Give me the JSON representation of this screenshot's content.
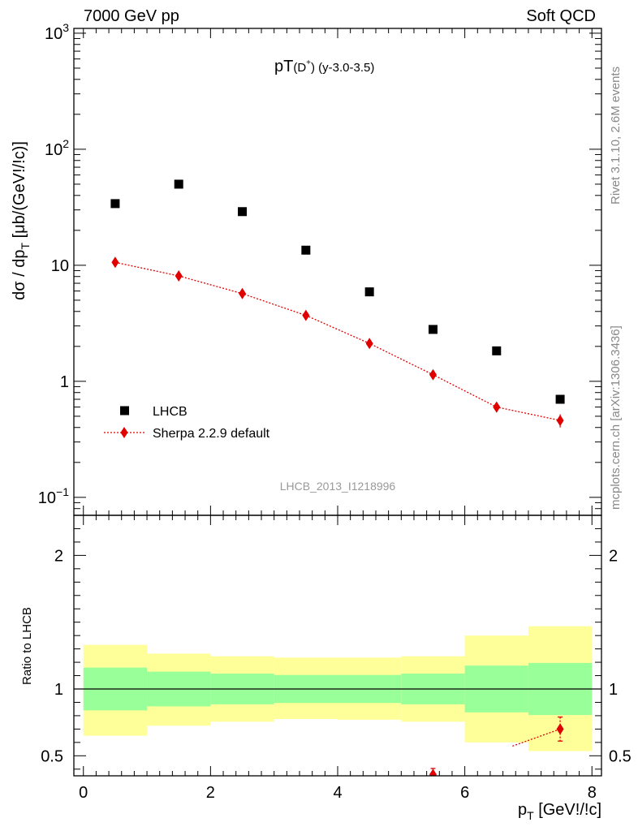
{
  "header": {
    "left": "7000 GeV pp",
    "right": "Soft QCD"
  },
  "side_labels": {
    "rivet": "Rivet 3.1.10,  2.6M events",
    "source": "mcplots.cern.ch [arXiv:1306.3436]"
  },
  "chart_data": [
    {
      "type": "scatter",
      "panel": "main",
      "title_main": "pT",
      "title_particle": "(D",
      "title_charge": "+",
      "title_tail": ") (y-3.0-3.5)",
      "ylabel": "dσ / dp",
      "ylabel_sub": "T",
      "ylabel_units": " [μb/(GeV!/!c)]",
      "yscale": "log",
      "xlim": [
        -0.15,
        8.15
      ],
      "ylim": [
        0.07,
        1100
      ],
      "ytick_labels": [
        {
          "value": 0.1,
          "base": "10",
          "exp": "−1"
        },
        {
          "value": 1,
          "base": "1",
          "exp": ""
        },
        {
          "value": 10,
          "base": "10",
          "exp": ""
        },
        {
          "value": 100,
          "base": "10",
          "exp": "2"
        },
        {
          "value": 1000,
          "base": "10",
          "exp": "3"
        }
      ],
      "analysis_id": "LHCB_2013_I1218996",
      "legend_position": "lower-left",
      "series": [
        {
          "name": "LHCB",
          "marker": "square",
          "color": "#000000",
          "x": [
            0.5,
            1.5,
            2.5,
            3.5,
            4.5,
            5.5,
            6.5,
            7.5
          ],
          "y": [
            34,
            50,
            29,
            13.5,
            5.9,
            2.8,
            1.83,
            0.7
          ]
        },
        {
          "name": "Sherpa 2.2.9 default",
          "marker": "diamond",
          "line": "dotted",
          "color": "#e00000",
          "x": [
            0.5,
            1.5,
            2.5,
            3.5,
            4.5,
            5.5,
            6.5,
            7.5
          ],
          "y": [
            10.6,
            8.1,
            5.7,
            3.7,
            2.12,
            1.14,
            0.6,
            0.46
          ],
          "y_err": [
            0.5,
            0.35,
            0.25,
            0.18,
            0.1,
            0.08,
            0.06,
            0.06
          ]
        }
      ]
    },
    {
      "type": "area",
      "panel": "ratio",
      "ylabel": "Ratio to LHCB",
      "xlabel": "p",
      "xlabel_sub": "T",
      "xlabel_units": " [GeV!/!c]",
      "xlim": [
        -0.15,
        8.15
      ],
      "ylim": [
        0.35,
        2.3
      ],
      "xticks": [
        0,
        2,
        4,
        6,
        8
      ],
      "yticks": [
        0.5,
        1,
        2
      ],
      "ytick_labels": [
        "0.5",
        "1",
        "2"
      ],
      "reference_line": 1,
      "bins": [
        [
          0,
          1
        ],
        [
          1,
          2
        ],
        [
          2,
          3
        ],
        [
          3,
          4
        ],
        [
          4,
          5
        ],
        [
          5,
          6
        ],
        [
          6,
          7
        ],
        [
          7,
          8
        ]
      ],
      "band_inner": {
        "color": "#99ff99",
        "lo": [
          0.84,
          0.87,
          0.885,
          0.895,
          0.895,
          0.885,
          0.825,
          0.805
        ],
        "hi": [
          1.16,
          1.13,
          1.115,
          1.105,
          1.105,
          1.115,
          1.175,
          1.195
        ]
      },
      "band_outer": {
        "color": "#ffff99",
        "lo": [
          0.65,
          0.725,
          0.755,
          0.775,
          0.77,
          0.755,
          0.6,
          0.535
        ],
        "hi": [
          1.33,
          1.265,
          1.245,
          1.235,
          1.235,
          1.245,
          1.4,
          1.47
        ]
      },
      "series": [
        {
          "name": "Sherpa 2.2.9 default",
          "color": "#e00000",
          "x": [
            5.5,
            7.5
          ],
          "y": [
            0.36,
            0.7
          ],
          "y_err": [
            0.045,
            0.09
          ],
          "line_from_x": 6.75
        }
      ]
    }
  ]
}
